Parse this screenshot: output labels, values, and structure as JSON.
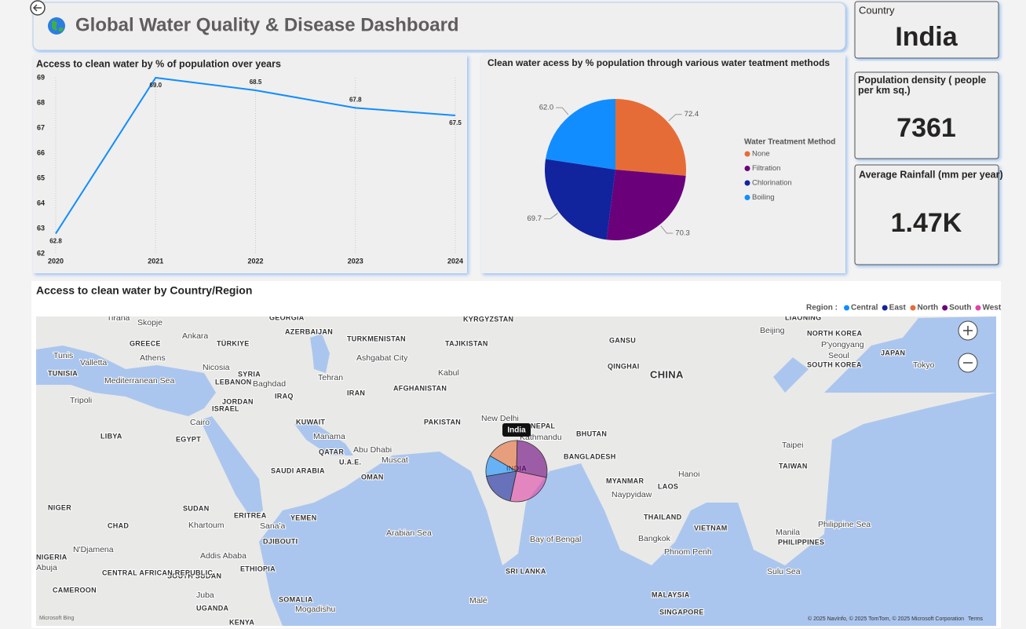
{
  "header": {
    "title": "Global Water Quality & Disease Dashboard"
  },
  "cards": [
    {
      "label": "Country",
      "value": "India"
    },
    {
      "label": "Population density ( people per km sq.)",
      "value": 7361
    },
    {
      "label": "Average Rainfall (mm per year)",
      "value": "1.47K"
    }
  ],
  "chart_data": [
    {
      "type": "line",
      "title": "Access to clean water by % of population over years",
      "categories": [
        "2020",
        "2021",
        "2022",
        "2023",
        "2024"
      ],
      "values": [
        62.8,
        69.0,
        68.5,
        67.8,
        67.5
      ],
      "value_labels": [
        "62.8",
        "69.0",
        "68.5",
        "67.8",
        "67.5"
      ],
      "color": "#118DFF",
      "ylim": [
        62,
        69
      ],
      "yticks": [
        62,
        63,
        64,
        65,
        66,
        67,
        68,
        69
      ],
      "grid": true
    },
    {
      "type": "pie",
      "title": "Clean water acess by % population through various water teatment methods",
      "legend_title": "Water Treatment Method",
      "categories": [
        "None",
        "Filtration",
        "Chlorination",
        "Boiling"
      ],
      "values": [
        72.4,
        70.3,
        69.7,
        62.0
      ],
      "value_labels": [
        "72.4",
        "70.3",
        "69.7",
        "62.0"
      ],
      "colors": [
        "#E66C37",
        "#6B007B",
        "#12239E",
        "#118DFF"
      ]
    }
  ],
  "map": {
    "title": "Access to clean water by Country/Region",
    "legend_title": "Region :",
    "regions": [
      {
        "name": "Central",
        "color": "#118DFF",
        "value": 11
      },
      {
        "name": "East",
        "color": "#12239E",
        "value": 19
      },
      {
        "name": "North",
        "color": "#E66C37",
        "value": 17
      },
      {
        "name": "South",
        "color": "#6B007B",
        "value": 28
      },
      {
        "name": "West",
        "color": "#E044A7",
        "value": 25
      }
    ],
    "bubble_label": "India",
    "labels": [
      "Tirana",
      "Skopje",
      "GEORGIA",
      "AZERBAIJAN",
      "KYRGYZSTAN",
      "Beijing",
      "LIAONING",
      "Ankara",
      "TÜRKIYE",
      "TURKMENISTAN",
      "TAJIKISTAN",
      "GANSU",
      "NORTH KOREA",
      "P'yongyang",
      "Seoul",
      "SOUTH KOREA",
      "JAPAN",
      "Tokyo",
      "GREECE",
      "Athens",
      "Tunis",
      "TUNISIA",
      "Valletta",
      "Nicosia",
      "SYRIA",
      "LEBANON",
      "Baghdad",
      "Tehran",
      "IRAN",
      "AFGHANISTAN",
      "Kabul",
      "Ashgabat City",
      "CHINA",
      "QINGHAI",
      "Mediterranean Sea",
      "Tripoli",
      "JORDAN",
      "ISRAEL",
      "IRAQ",
      "PAKISTAN",
      "New Delhi",
      "NEPAL",
      "Kathmandu",
      "BHUTAN",
      "LIBYA",
      "EGYPT",
      "Cairo",
      "KUWAIT",
      "Manama",
      "QATAR",
      "Abu Dhabi",
      "U.A.E.",
      "Muscat",
      "OMAN",
      "BANGLADESH",
      "SAUDI ARABIA",
      "MYANMAR",
      "Hanoi",
      "LAOS",
      "TAIWAN",
      "Taipei",
      "NIGER",
      "CHAD",
      "SUDAN",
      "Khartoum",
      "ERITREA",
      "YEMEN",
      "Sana'a",
      "THAILAND",
      "VIETNAM",
      "Bangkok",
      "Manila",
      "PHILIPPINES",
      "Philippine Sea",
      "Arabian Sea",
      "Bay of Bengal",
      "N'Djamena",
      "DJIBOUTI",
      "Addis Ababa",
      "ETHIOPIA",
      "SOUTH SUDAN",
      "CENTRAL AFRICAN REPUBLIC",
      "SRI LANKA",
      "CAMEROON",
      "Abuja",
      "NIGERIA",
      "SOMALIA",
      "Mogadishu",
      "UGANDA",
      "KENYA",
      "Juba",
      "MALAYSIA",
      "SINGAPORE",
      "Malé",
      "Naypyidaw",
      "Phnom Penh",
      "Sulu Sea",
      "INDIA"
    ],
    "attribution": "© 2025 NavInfo, © 2025 TomTom, © 2025 Microsoft Corporation",
    "terms": "Terms",
    "provider": "Microsoft Bing"
  }
}
